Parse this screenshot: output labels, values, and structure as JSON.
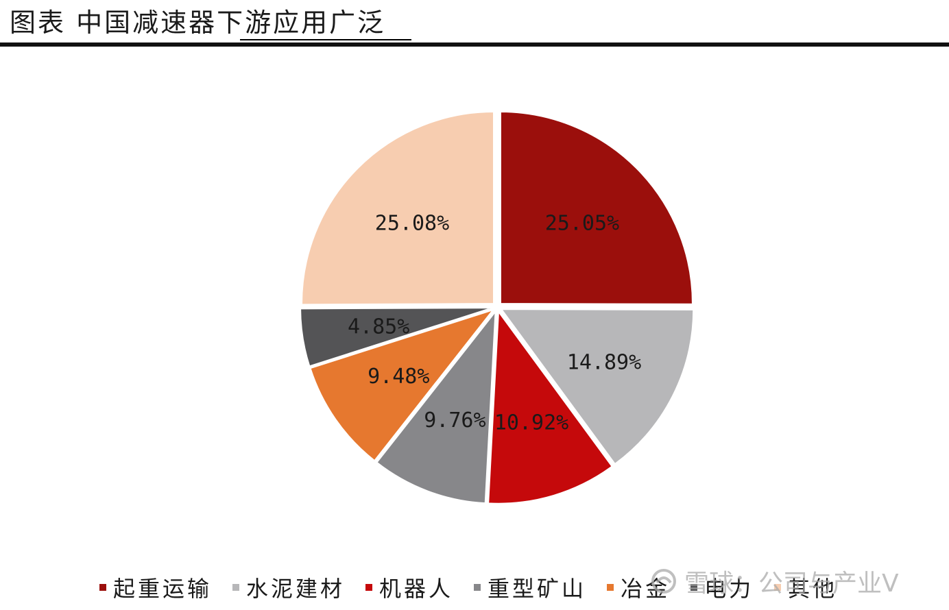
{
  "header": {
    "title": "图表 中国减速器下游应用广泛"
  },
  "chart_data": {
    "type": "pie",
    "categories": [
      "起重运输",
      "水泥建材",
      "机器人",
      "重型矿山",
      "冶金",
      "电力",
      "其他"
    ],
    "values": [
      25.05,
      14.89,
      10.92,
      9.76,
      9.48,
      4.85,
      25.08
    ],
    "labels": [
      "25.05%",
      "14.89%",
      "10.92%",
      "9.76%",
      "9.48%",
      "4.85%",
      "25.08%"
    ],
    "colors": [
      "#9b0f0c",
      "#b7b7b9",
      "#c5090b",
      "#87878a",
      "#e6782f",
      "#545456",
      "#f7cdb0"
    ],
    "label_colors": [
      "#1a1a1a",
      "#1a1a1a",
      "#1a1a1a",
      "#1a1a1a",
      "#1a1a1a",
      "#1a1a1a",
      "#1a1a1a"
    ],
    "start_angle_deg": 0,
    "direction": "clockwise",
    "legend": "bottom"
  },
  "watermark": {
    "text": "雪球：公司与产业V"
  }
}
